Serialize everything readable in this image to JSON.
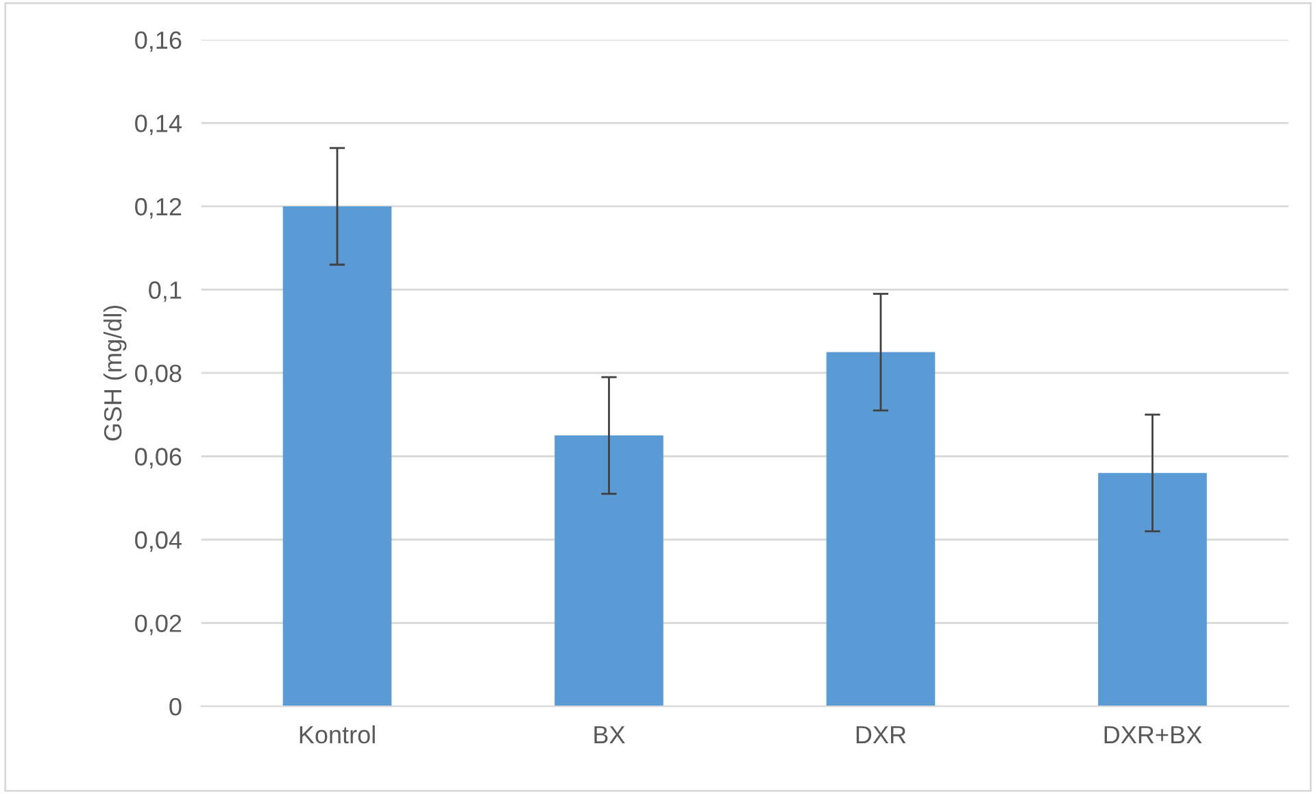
{
  "chart_data": {
    "type": "bar",
    "ylabel": "GSH (mg/dl)",
    "categories": [
      "Kontrol",
      "BX",
      "DXR",
      "DXR+BX"
    ],
    "values": [
      0.12,
      0.065,
      0.085,
      0.056
    ],
    "errors": [
      0.014,
      0.014,
      0.014,
      0.014
    ],
    "color": "#5b9bd5",
    "ylim": [
      0,
      0.16
    ],
    "yticks": [
      {
        "value": 0,
        "label": "0"
      },
      {
        "value": 0.02,
        "label": "0,02"
      },
      {
        "value": 0.04,
        "label": "0,04"
      },
      {
        "value": 0.06,
        "label": "0,06"
      },
      {
        "value": 0.08,
        "label": "0,08"
      },
      {
        "value": 0.1,
        "label": "0,1"
      },
      {
        "value": 0.12,
        "label": "0,12"
      },
      {
        "value": 0.14,
        "label": "0,14"
      },
      {
        "value": 0.16,
        "label": "0,16"
      }
    ],
    "grid": "y"
  }
}
